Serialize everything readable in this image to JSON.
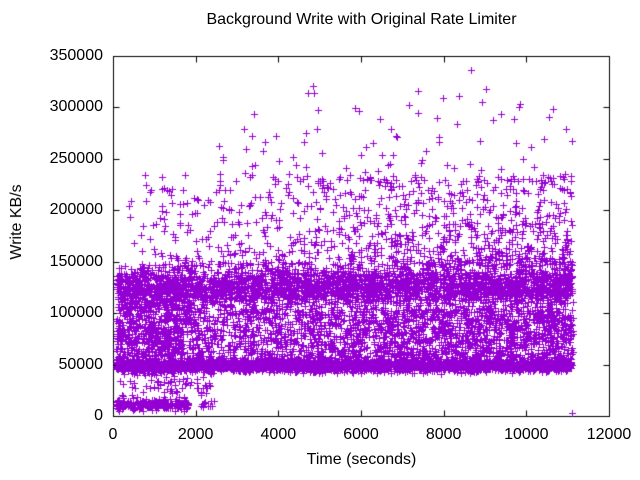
{
  "window": {
    "background": "#ffffff",
    "text_color": "#000000"
  },
  "chart_data": {
    "type": "scatter",
    "title": "Background Write with Original Rate Limiter",
    "xlabel": "Time (seconds)",
    "ylabel": "Write KB/s",
    "xlim": [
      0,
      12000
    ],
    "ylim": [
      0,
      350000
    ],
    "xticks": [
      0,
      2000,
      4000,
      6000,
      8000,
      10000,
      12000
    ],
    "xtick_labels": [
      "0",
      "2000",
      "4000",
      "6000",
      "8000",
      "10000",
      "12000"
    ],
    "yticks": [
      0,
      50000,
      100000,
      150000,
      200000,
      250000,
      300000,
      350000
    ],
    "ytick_labels": [
      "0",
      "50000",
      "100000",
      "150000",
      "200000",
      "250000",
      "300000",
      "350000"
    ],
    "grid": false,
    "legend": "none",
    "frame_color": "#000000",
    "tick_length": 6,
    "marker": {
      "shape": "plus",
      "size": 7,
      "color": "#9400d3"
    },
    "series_name": "background-write-kbps",
    "time_range": [
      80,
      11120
    ],
    "seed": 1337,
    "description": "Dense band near 50000 KB/s across full run; dense band 103000-148000 KB/s; moderate scatter 56000-104000 growing over time; sparse scatter 147000-235000 growing over time; rare spikes 228000-337000 mostly after t=2400; startup cluster 4500-19000 KB/s for t<1900; max point ~336000 at t~8670; final point ~2500 at t~11100.",
    "scatter_groups": [
      {
        "name": "low-start-cluster",
        "count": 240,
        "t_min": 80,
        "t_max": 1850,
        "t_bias": 1,
        "v": {
          "dist": "gauss",
          "mean": 11500,
          "sd": 2900,
          "clip": [
            4500,
            18800
          ]
        }
      },
      {
        "name": "low-start-scatter",
        "count": 85,
        "t_min": 80,
        "t_max": 2450,
        "t_bias": 1,
        "v": {
          "dist": "uniform",
          "min": 19000,
          "max": 46000
        }
      },
      {
        "name": "low-pocket",
        "count": 12,
        "t_min": 2050,
        "t_max": 2450,
        "t_bias": 1,
        "v": {
          "dist": "uniform",
          "min": 8500,
          "max": 16000
        }
      },
      {
        "name": "band-50k",
        "count": 3400,
        "t_min": 80,
        "t_max": 11120,
        "t_bias": 1,
        "v": {
          "dist": "gauss",
          "mean": 49500,
          "sd": 3000,
          "clip": [
            41000,
            58500
          ]
        }
      },
      {
        "name": "early-mid-clump",
        "count": 260,
        "t_min": 80,
        "t_max": 1700,
        "t_bias": 1,
        "v": {
          "dist": "uniform",
          "min": 58000,
          "max": 88000
        }
      },
      {
        "name": "early-upper-clump",
        "count": 150,
        "t_min": 80,
        "t_max": 1900,
        "t_bias": 1,
        "v": {
          "dist": "uniform",
          "min": 90000,
          "max": 112000
        }
      },
      {
        "name": "mid-scatter",
        "count": 2000,
        "t_min": 80,
        "t_max": 11120,
        "t_bias": 0.72,
        "v": {
          "dist": "uniform",
          "min": 56000,
          "max": 104000
        }
      },
      {
        "name": "band-125k",
        "count": 2700,
        "t_min": 80,
        "t_max": 11120,
        "t_bias": 1,
        "v": {
          "dist": "gauss",
          "mean": 125000,
          "sd": 9800,
          "clip": [
            103000,
            146500
          ]
        }
      },
      {
        "name": "band-125k-halo",
        "count": 450,
        "t_min": 80,
        "t_max": 11120,
        "t_bias": 0.85,
        "v": {
          "dist": "uniform",
          "min": 99000,
          "max": 148000
        }
      },
      {
        "name": "upper-scatter",
        "count": 950,
        "t_min": 150,
        "t_max": 11120,
        "t_bias": 0.62,
        "v": {
          "dist": "power",
          "base": 147000,
          "range": 88000,
          "exp": 1.7
        }
      },
      {
        "name": "high-outliers",
        "count": 85,
        "t_min": 2400,
        "t_max": 11120,
        "t_bias": 0.8,
        "v": {
          "dist": "power",
          "base": 228000,
          "range": 92000,
          "exp": 2.1
        }
      }
    ],
    "outlier_points": [
      [
        8670,
        336000
      ],
      [
        4850,
        321000
      ],
      [
        4870,
        314000
      ],
      [
        5850,
        299000
      ],
      [
        5950,
        297000
      ],
      [
        7150,
        302000
      ],
      [
        9850,
        303000
      ],
      [
        10650,
        298000
      ],
      [
        10550,
        291000
      ],
      [
        6450,
        289000
      ],
      [
        3620,
        258000
      ],
      [
        2650,
        252000
      ],
      [
        2300,
        210000
      ],
      [
        1800,
        207000
      ],
      [
        1620,
        196000
      ],
      [
        1230,
        192000
      ],
      [
        960,
        186000
      ],
      [
        11100,
        2500
      ]
    ]
  }
}
